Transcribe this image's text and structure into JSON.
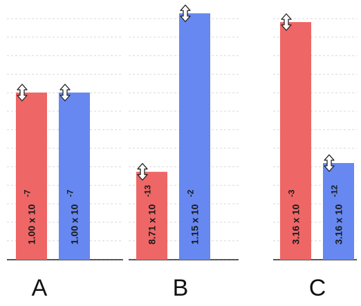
{
  "chart_data": {
    "type": "bar",
    "grid": true,
    "colors": {
      "red": "#ef6666",
      "blue": "#6688f0"
    },
    "panels": [
      {
        "label": "A",
        "bars": [
          {
            "color": "red",
            "value": 1e-07,
            "mantissa": "1.00 x 10",
            "exponent": "-7"
          },
          {
            "color": "blue",
            "value": 1e-07,
            "mantissa": "1.00 x 10",
            "exponent": "-7"
          }
        ]
      },
      {
        "label": "B",
        "bars": [
          {
            "color": "red",
            "value": 8.71e-13,
            "mantissa": "8.71 x 10",
            "exponent": "-13"
          },
          {
            "color": "blue",
            "value": 0.0115,
            "mantissa": "1.15 x 10",
            "exponent": "-2"
          }
        ]
      },
      {
        "label": "C",
        "bars": [
          {
            "color": "red",
            "value": 0.00316,
            "mantissa": "3.16 x 10",
            "exponent": "-3"
          },
          {
            "color": "blue",
            "value": 3.16e-12,
            "mantissa": "3.16 x 10",
            "exponent": "-12"
          }
        ]
      }
    ]
  }
}
